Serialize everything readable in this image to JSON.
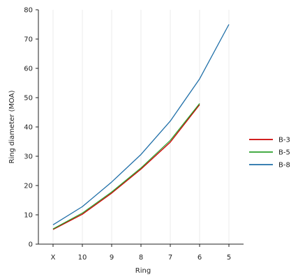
{
  "chart_data": {
    "type": "line",
    "title": "",
    "xlabel": "Ring",
    "ylabel": "Ring diameter (MOA)",
    "categories": [
      "X",
      "10",
      "9",
      "8",
      "7",
      "6",
      "5"
    ],
    "ylim": [
      0,
      80
    ],
    "yticks": [
      0,
      10,
      20,
      30,
      40,
      50,
      60,
      70,
      80
    ],
    "grid": "vertical, light",
    "legend_position": "right",
    "series": [
      {
        "name": "B-3",
        "color": "#cc0000",
        "values": [
          5.0,
          10.2,
          17.4,
          25.6,
          34.8,
          47.6,
          null
        ]
      },
      {
        "name": "B-5",
        "color": "#2ca02c",
        "values": [
          5.2,
          10.6,
          17.8,
          26.0,
          35.4,
          48.0,
          null
        ]
      },
      {
        "name": "B-8",
        "color": "#1f6fa8",
        "values": [
          6.6,
          12.8,
          21.2,
          30.6,
          42.0,
          56.4,
          75.0
        ]
      }
    ]
  }
}
